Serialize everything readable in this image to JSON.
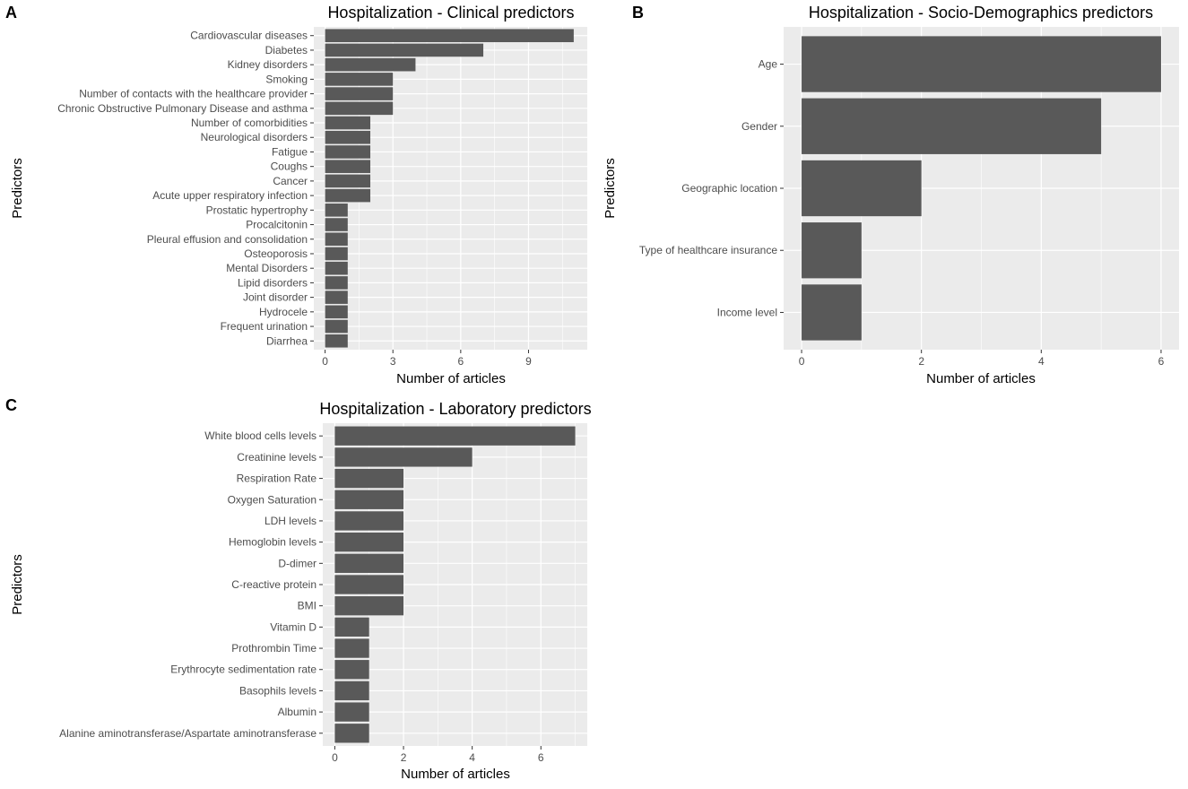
{
  "figure": {
    "background": "#ffffff",
    "panel_background": "#ebebeb",
    "grid_color": "#ffffff",
    "bar_color": "#595959",
    "tick_label_color": "#4d4d4d"
  },
  "chart_data": [
    {
      "id": "A",
      "panel_letter": "A",
      "type": "bar",
      "orientation": "horizontal",
      "title": "Hospitalization - Clinical predictors",
      "xlabel": "Number of articles",
      "ylabel": "Predictors",
      "xlim": [
        -0.5,
        11.6
      ],
      "xticks": [
        0,
        3,
        6,
        9
      ],
      "xtick_labels": [
        "0",
        "3",
        "6",
        "9"
      ],
      "grid": true,
      "categories": [
        "Cardiovascular diseases",
        "Diabetes",
        "Kidney disorders",
        "Smoking",
        "Number of contacts with the healthcare provider",
        "Chronic Obstructive Pulmonary Disease and asthma",
        "Number of comorbidities",
        "Neurological disorders",
        "Fatigue",
        "Coughs",
        "Cancer",
        "Acute upper respiratory infection",
        "Prostatic hypertrophy",
        "Procalcitonin",
        "Pleural effusion and consolidation",
        "Osteoporosis",
        "Mental Disorders",
        "Lipid disorders",
        "Joint disorder",
        "Hydrocele",
        "Frequent urination",
        "Diarrhea"
      ],
      "values": [
        11,
        7,
        4,
        3,
        3,
        3,
        2,
        2,
        2,
        2,
        2,
        2,
        1,
        1,
        1,
        1,
        1,
        1,
        1,
        1,
        1,
        1
      ]
    },
    {
      "id": "B",
      "panel_letter": "B",
      "type": "bar",
      "orientation": "horizontal",
      "title": "Hospitalization - Socio-Demographics predictors",
      "xlabel": "Number of articles",
      "ylabel": "Predictors",
      "xlim": [
        -0.3,
        6.3
      ],
      "xticks": [
        0,
        2,
        4,
        6
      ],
      "xtick_labels": [
        "0",
        "2",
        "4",
        "6"
      ],
      "grid": true,
      "categories": [
        "Age",
        "Gender",
        "Geographic location",
        "Type of healthcare insurance",
        "Income level"
      ],
      "values": [
        6,
        5,
        2,
        1,
        1
      ]
    },
    {
      "id": "C",
      "panel_letter": "C",
      "type": "bar",
      "orientation": "horizontal",
      "title": "Hospitalization - Laboratory predictors",
      "xlabel": "Number of articles",
      "ylabel": "Predictors",
      "xlim": [
        -0.35,
        7.35
      ],
      "xticks": [
        0,
        2,
        4,
        6
      ],
      "xtick_labels": [
        "0",
        "2",
        "4",
        "6"
      ],
      "grid": true,
      "categories": [
        "White blood cells levels",
        "Creatinine levels",
        "Respiration Rate",
        "Oxygen Saturation",
        "LDH levels",
        "Hemoglobin levels",
        "D-dimer",
        "C-reactive protein",
        "BMI",
        "Vitamin D",
        "Prothrombin Time",
        "Erythrocyte sedimentation rate",
        "Basophils levels",
        "Albumin",
        "Alanine aminotransferase/Aspartate aminotransferase"
      ],
      "values": [
        7,
        4,
        2,
        2,
        2,
        2,
        2,
        2,
        2,
        1,
        1,
        1,
        1,
        1,
        1
      ]
    }
  ]
}
